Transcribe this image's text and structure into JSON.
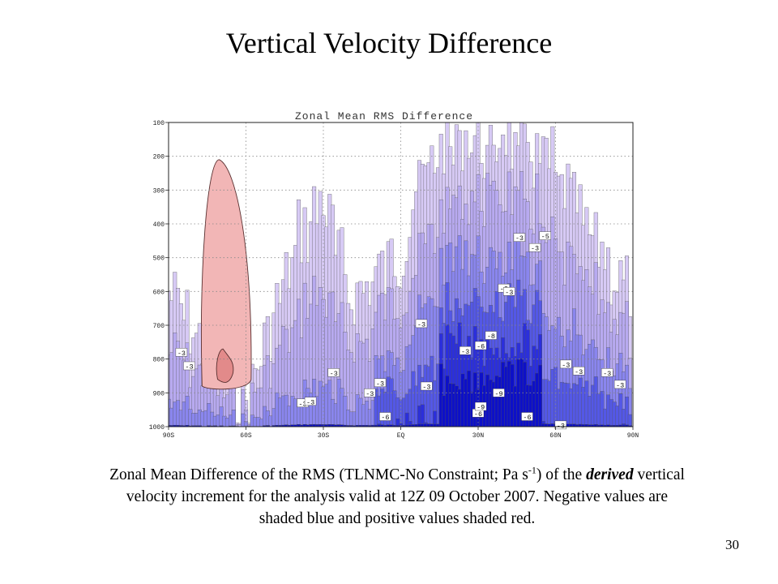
{
  "slide": {
    "title": "Vertical Velocity Difference",
    "page_number": "30"
  },
  "caption": {
    "part1": "Zonal Mean Difference of the RMS (TLNMC-No Constraint; Pa s",
    "superscript": "-1",
    "part2": ") of the ",
    "emphasis": "derived",
    "part3": " vertical velocity increment for the analysis valid at 12Z 09 October 2007.  Negative values are shaded blue and positive values shaded red."
  },
  "chart_data": {
    "type": "heatmap",
    "title": "Zonal Mean RMS Difference",
    "xlabel": "",
    "ylabel": "",
    "x_ticks": [
      "90S",
      "60S",
      "30S",
      "EQ",
      "30N",
      "60N",
      "90N"
    ],
    "x_values": [
      -90,
      -60,
      -30,
      0,
      30,
      60,
      90
    ],
    "y_ticks": [
      "100",
      "200",
      "300",
      "400",
      "500",
      "600",
      "700",
      "800",
      "900",
      "1000"
    ],
    "y_values": [
      100,
      200,
      300,
      400,
      500,
      600,
      700,
      800,
      900,
      1000
    ],
    "xlim": [
      -90,
      90
    ],
    "ylim": [
      1000,
      100
    ],
    "grid": true,
    "colors": {
      "positive": "#f2b6b6",
      "positive_strong": "#e28a8a",
      "negative_1": "#d7caf5",
      "negative_2": "#b8aaf0",
      "negative_3": "#8a86ee",
      "negative_4": "#5458e6",
      "negative_5": "#2b2fdc",
      "negative_6": "#0d10c8"
    },
    "positive_regions": [
      {
        "lat_min": -77,
        "lat_max": -58,
        "p_top": 210,
        "p_bottom": 880
      },
      {
        "lat_min": -71,
        "lat_max": -65,
        "p_top": 770,
        "p_bottom": 860
      }
    ],
    "negative_envelope": [
      {
        "lat": -90,
        "p_top": 620
      },
      {
        "lat": -80,
        "p_top": 720
      },
      {
        "lat": -60,
        "p_top": 930
      },
      {
        "lat": -48,
        "p_top": 640
      },
      {
        "lat": -38,
        "p_top": 420
      },
      {
        "lat": -30,
        "p_top": 340
      },
      {
        "lat": -20,
        "p_top": 620
      },
      {
        "lat": -10,
        "p_top": 560
      },
      {
        "lat": 0,
        "p_top": 500
      },
      {
        "lat": 8,
        "p_top": 270
      },
      {
        "lat": 15,
        "p_top": 200
      },
      {
        "lat": 25,
        "p_top": 150
      },
      {
        "lat": 35,
        "p_top": 140
      },
      {
        "lat": 45,
        "p_top": 145
      },
      {
        "lat": 55,
        "p_top": 200
      },
      {
        "lat": 65,
        "p_top": 320
      },
      {
        "lat": 75,
        "p_top": 460
      },
      {
        "lat": 85,
        "p_top": 560
      },
      {
        "lat": 90,
        "p_top": 620
      }
    ],
    "contour_labels": [
      {
        "text": "-3",
        "lat": -85,
        "p": 780
      },
      {
        "text": "-3",
        "lat": -82,
        "p": 820
      },
      {
        "text": "-3",
        "lat": -38,
        "p": 930
      },
      {
        "text": "-3",
        "lat": -35,
        "p": 925
      },
      {
        "text": "-3",
        "lat": -26,
        "p": 840
      },
      {
        "text": "-3",
        "lat": -8,
        "p": 870
      },
      {
        "text": "-3",
        "lat": -12,
        "p": 900
      },
      {
        "text": "-6",
        "lat": -6,
        "p": 970
      },
      {
        "text": "-3",
        "lat": 10,
        "p": 880
      },
      {
        "text": "-3",
        "lat": 8,
        "p": 695
      },
      {
        "text": "-3",
        "lat": 25,
        "p": 775
      },
      {
        "text": "-6",
        "lat": 31,
        "p": 760
      },
      {
        "text": "-9",
        "lat": 38,
        "p": 900
      },
      {
        "text": "-6",
        "lat": 30,
        "p": 960
      },
      {
        "text": "-8",
        "lat": 35,
        "p": 730
      },
      {
        "text": "-9",
        "lat": 31,
        "p": 940
      },
      {
        "text": "-3",
        "lat": 40,
        "p": 590
      },
      {
        "text": "-3",
        "lat": 42,
        "p": 600
      },
      {
        "text": "-3",
        "lat": 46,
        "p": 440
      },
      {
        "text": "-3",
        "lat": 52,
        "p": 470
      },
      {
        "text": "-5",
        "lat": 56,
        "p": 435
      },
      {
        "text": "-6",
        "lat": 49,
        "p": 970
      },
      {
        "text": "-3",
        "lat": 64,
        "p": 815
      },
      {
        "text": "-3",
        "lat": 69,
        "p": 835
      },
      {
        "text": "-3",
        "lat": 80,
        "p": 840
      },
      {
        "text": "-3",
        "lat": 85,
        "p": 875
      },
      {
        "text": "-3",
        "lat": 62,
        "p": 995
      }
    ]
  }
}
